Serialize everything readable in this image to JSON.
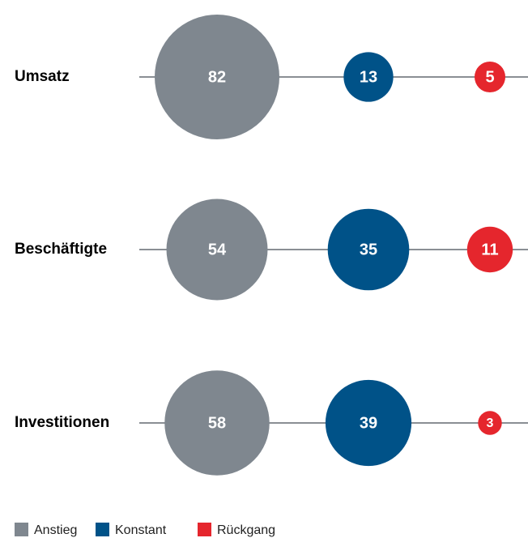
{
  "chart_data": {
    "type": "bubble",
    "categories": [
      "Umsatz",
      "Beschäftigte",
      "Investitionen"
    ],
    "series": [
      {
        "name": "Anstieg",
        "color": "#7f878f",
        "values": [
          82,
          54,
          58
        ]
      },
      {
        "name": "Konstant",
        "color": "#005288",
        "values": [
          13,
          35,
          39
        ]
      },
      {
        "name": "Rückgang",
        "color": "#e5262d",
        "values": [
          5,
          11,
          3
        ]
      }
    ]
  }
}
